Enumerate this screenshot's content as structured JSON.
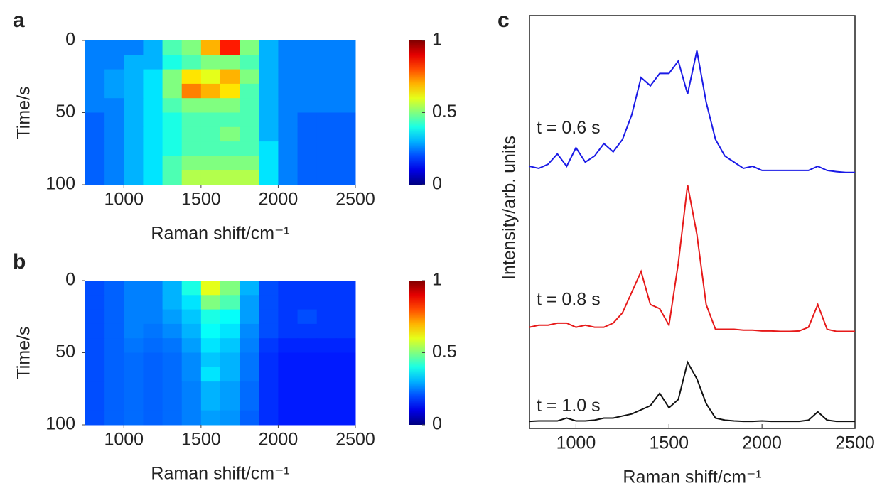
{
  "chart_data": [
    {
      "type": "heatmap",
      "panel": "a",
      "xlabel": "Raman shift/cm⁻¹",
      "ylabel": "Time/s",
      "xbins": [
        750,
        875,
        1000,
        1125,
        1250,
        1375,
        1500,
        1625,
        1750,
        1875,
        2000,
        2125,
        2250,
        2375,
        2500
      ],
      "ybins": [
        0,
        10,
        20,
        30,
        40,
        50,
        60,
        70,
        80,
        90,
        100
      ],
      "z": [
        [
          0.25,
          0.25,
          0.25,
          0.3,
          0.45,
          0.5,
          0.7,
          0.85,
          0.5,
          0.3,
          0.25,
          0.25,
          0.25,
          0.25
        ],
        [
          0.25,
          0.25,
          0.3,
          0.3,
          0.4,
          0.45,
          0.5,
          0.5,
          0.45,
          0.3,
          0.25,
          0.25,
          0.25,
          0.25
        ],
        [
          0.25,
          0.28,
          0.3,
          0.35,
          0.5,
          0.65,
          0.6,
          0.7,
          0.5,
          0.3,
          0.25,
          0.25,
          0.25,
          0.25
        ],
        [
          0.25,
          0.28,
          0.3,
          0.35,
          0.5,
          0.75,
          0.7,
          0.65,
          0.45,
          0.3,
          0.25,
          0.25,
          0.25,
          0.25
        ],
        [
          0.25,
          0.25,
          0.3,
          0.35,
          0.45,
          0.5,
          0.5,
          0.5,
          0.45,
          0.3,
          0.25,
          0.25,
          0.25,
          0.25
        ],
        [
          0.22,
          0.25,
          0.3,
          0.35,
          0.4,
          0.45,
          0.45,
          0.45,
          0.45,
          0.3,
          0.25,
          0.22,
          0.22,
          0.22
        ],
        [
          0.22,
          0.25,
          0.3,
          0.35,
          0.4,
          0.45,
          0.45,
          0.5,
          0.45,
          0.3,
          0.25,
          0.22,
          0.22,
          0.22
        ],
        [
          0.22,
          0.25,
          0.3,
          0.35,
          0.4,
          0.45,
          0.45,
          0.45,
          0.45,
          0.35,
          0.25,
          0.22,
          0.22,
          0.22
        ],
        [
          0.22,
          0.25,
          0.3,
          0.35,
          0.45,
          0.5,
          0.5,
          0.5,
          0.5,
          0.35,
          0.25,
          0.22,
          0.22,
          0.22
        ],
        [
          0.22,
          0.25,
          0.3,
          0.35,
          0.45,
          0.55,
          0.55,
          0.55,
          0.55,
          0.35,
          0.25,
          0.22,
          0.22,
          0.22
        ]
      ],
      "xlim": [
        750,
        2500
      ],
      "xticks": [
        1000,
        1500,
        2000,
        2500
      ],
      "ylim": [
        0,
        100
      ],
      "yticks": [
        0,
        50,
        100
      ],
      "y_inverted": true,
      "zlim": [
        0,
        1
      ],
      "zticks": [
        0,
        0.5,
        1
      ],
      "colormap": "jet"
    },
    {
      "type": "heatmap",
      "panel": "b",
      "xlabel": "Raman shift/cm⁻¹",
      "ylabel": "Time/s",
      "xbins": [
        750,
        875,
        1000,
        1125,
        1250,
        1375,
        1500,
        1625,
        1750,
        1875,
        2000,
        2125,
        2250,
        2375,
        2500
      ],
      "ybins": [
        0,
        10,
        20,
        30,
        40,
        50,
        60,
        70,
        80,
        90,
        100
      ],
      "z": [
        [
          0.2,
          0.22,
          0.25,
          0.25,
          0.3,
          0.4,
          0.6,
          0.5,
          0.3,
          0.2,
          0.18,
          0.18,
          0.18,
          0.18
        ],
        [
          0.2,
          0.22,
          0.25,
          0.25,
          0.3,
          0.35,
          0.5,
          0.45,
          0.28,
          0.2,
          0.18,
          0.18,
          0.18,
          0.18
        ],
        [
          0.2,
          0.22,
          0.25,
          0.25,
          0.28,
          0.32,
          0.4,
          0.38,
          0.28,
          0.2,
          0.18,
          0.2,
          0.18,
          0.18
        ],
        [
          0.2,
          0.22,
          0.25,
          0.24,
          0.26,
          0.3,
          0.38,
          0.35,
          0.26,
          0.2,
          0.18,
          0.18,
          0.18,
          0.18
        ],
        [
          0.2,
          0.22,
          0.24,
          0.23,
          0.24,
          0.28,
          0.35,
          0.32,
          0.25,
          0.18,
          0.16,
          0.16,
          0.16,
          0.16
        ],
        [
          0.2,
          0.22,
          0.23,
          0.22,
          0.23,
          0.26,
          0.32,
          0.3,
          0.24,
          0.17,
          0.15,
          0.15,
          0.15,
          0.15
        ],
        [
          0.2,
          0.22,
          0.23,
          0.22,
          0.23,
          0.26,
          0.35,
          0.3,
          0.24,
          0.17,
          0.15,
          0.15,
          0.15,
          0.15
        ],
        [
          0.2,
          0.22,
          0.23,
          0.22,
          0.23,
          0.25,
          0.3,
          0.28,
          0.23,
          0.17,
          0.15,
          0.15,
          0.15,
          0.15
        ],
        [
          0.2,
          0.22,
          0.23,
          0.22,
          0.23,
          0.25,
          0.3,
          0.28,
          0.23,
          0.17,
          0.15,
          0.15,
          0.15,
          0.15
        ],
        [
          0.2,
          0.22,
          0.23,
          0.22,
          0.23,
          0.25,
          0.28,
          0.27,
          0.22,
          0.17,
          0.15,
          0.15,
          0.15,
          0.15
        ]
      ],
      "xlim": [
        750,
        2500
      ],
      "xticks": [
        1000,
        1500,
        2000,
        2500
      ],
      "ylim": [
        0,
        100
      ],
      "yticks": [
        0,
        50,
        100
      ],
      "y_inverted": true,
      "zlim": [
        0,
        1
      ],
      "zticks": [
        0,
        0.5,
        1
      ],
      "colormap": "jet"
    },
    {
      "type": "line",
      "panel": "c",
      "xlabel": "Raman shift/cm⁻¹",
      "ylabel": "Intensity/arb. units",
      "x": [
        750,
        800,
        850,
        900,
        950,
        1000,
        1050,
        1100,
        1150,
        1200,
        1250,
        1300,
        1350,
        1400,
        1450,
        1500,
        1550,
        1600,
        1650,
        1700,
        1750,
        1800,
        1850,
        1900,
        1950,
        2000,
        2050,
        2100,
        2150,
        2200,
        2250,
        2300,
        2350,
        2400,
        2450,
        2500
      ],
      "series": [
        {
          "name": "t = 0.6 s",
          "color": "#1a1ae6",
          "values": [
            6.35,
            6.3,
            6.4,
            6.65,
            6.35,
            6.8,
            6.45,
            6.6,
            6.9,
            6.7,
            7.0,
            7.6,
            8.5,
            8.3,
            8.6,
            8.6,
            8.9,
            8.1,
            9.15,
            7.9,
            7.0,
            6.6,
            6.45,
            6.3,
            6.35,
            6.25,
            6.25,
            6.25,
            6.25,
            6.25,
            6.25,
            6.35,
            6.25,
            6.22,
            6.2,
            6.2
          ]
        },
        {
          "name": "t = 0.8 s",
          "color": "#e61a1a",
          "values": [
            2.45,
            2.5,
            2.5,
            2.55,
            2.55,
            2.45,
            2.5,
            2.45,
            2.45,
            2.55,
            2.8,
            3.3,
            3.8,
            3.0,
            2.9,
            2.5,
            4.0,
            5.9,
            4.7,
            3.0,
            2.4,
            2.4,
            2.4,
            2.38,
            2.38,
            2.36,
            2.36,
            2.35,
            2.35,
            2.36,
            2.45,
            3.0,
            2.4,
            2.35,
            2.35,
            2.35
          ]
        },
        {
          "name": "t = 1.0 s",
          "color": "#111111",
          "values": [
            0.17,
            0.18,
            0.18,
            0.18,
            0.25,
            0.18,
            0.18,
            0.2,
            0.25,
            0.25,
            0.3,
            0.35,
            0.45,
            0.55,
            0.85,
            0.5,
            0.7,
            1.6,
            1.2,
            0.6,
            0.25,
            0.2,
            0.18,
            0.17,
            0.17,
            0.18,
            0.17,
            0.17,
            0.17,
            0.17,
            0.2,
            0.4,
            0.2,
            0.17,
            0.17,
            0.17
          ]
        }
      ],
      "xlim": [
        750,
        2500
      ],
      "xticks": [
        1000,
        1500,
        2000,
        2500
      ],
      "ylim": [
        0,
        10
      ]
    }
  ]
}
